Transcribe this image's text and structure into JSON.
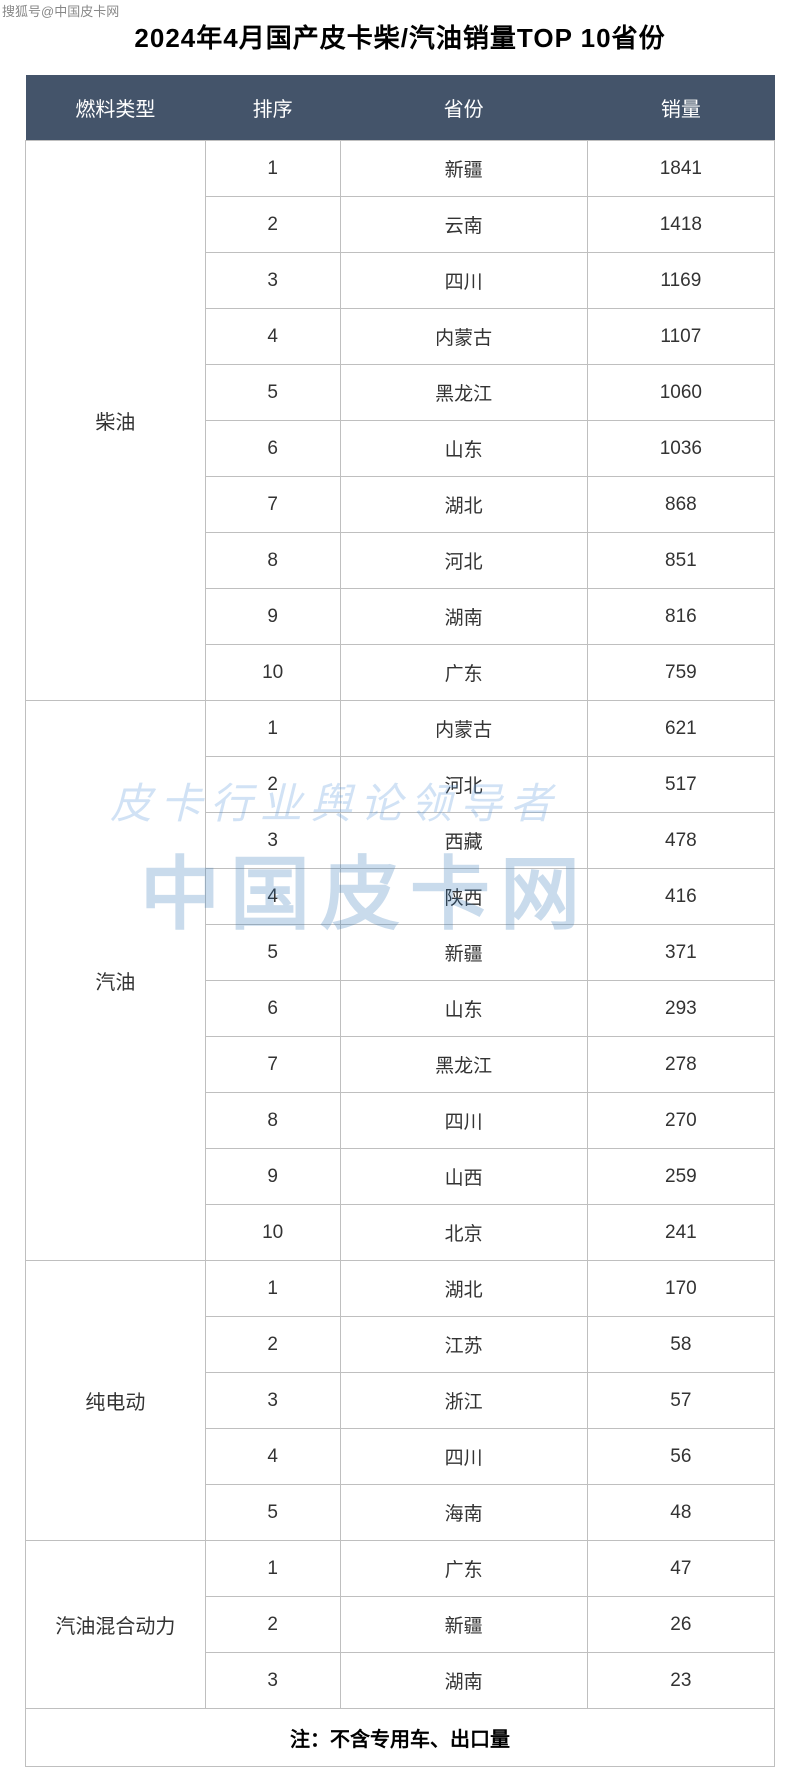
{
  "source_label": "搜狐号@中国皮卡网",
  "title": "2024年4月国产皮卡柴/汽油销量TOP 10省份",
  "watermark_line1": "皮卡行业舆论领导者",
  "watermark_line2": "中国皮卡网",
  "table": {
    "header_bg": "#44546a",
    "header_color": "#ffffff",
    "border_color": "#bfbfbf",
    "columns": [
      "燃料类型",
      "排序",
      "省份",
      "销量"
    ],
    "groups": [
      {
        "fuel_type": "柴油",
        "rows": [
          {
            "rank": "1",
            "province": "新疆",
            "sales": "1841"
          },
          {
            "rank": "2",
            "province": "云南",
            "sales": "1418"
          },
          {
            "rank": "3",
            "province": "四川",
            "sales": "1169"
          },
          {
            "rank": "4",
            "province": "内蒙古",
            "sales": "1107"
          },
          {
            "rank": "5",
            "province": "黑龙江",
            "sales": "1060"
          },
          {
            "rank": "6",
            "province": "山东",
            "sales": "1036"
          },
          {
            "rank": "7",
            "province": "湖北",
            "sales": "868"
          },
          {
            "rank": "8",
            "province": "河北",
            "sales": "851"
          },
          {
            "rank": "9",
            "province": "湖南",
            "sales": "816"
          },
          {
            "rank": "10",
            "province": "广东",
            "sales": "759"
          }
        ]
      },
      {
        "fuel_type": "汽油",
        "rows": [
          {
            "rank": "1",
            "province": "内蒙古",
            "sales": "621"
          },
          {
            "rank": "2",
            "province": "河北",
            "sales": "517"
          },
          {
            "rank": "3",
            "province": "西藏",
            "sales": "478"
          },
          {
            "rank": "4",
            "province": "陕西",
            "sales": "416"
          },
          {
            "rank": "5",
            "province": "新疆",
            "sales": "371"
          },
          {
            "rank": "6",
            "province": "山东",
            "sales": "293"
          },
          {
            "rank": "7",
            "province": "黑龙江",
            "sales": "278"
          },
          {
            "rank": "8",
            "province": "四川",
            "sales": "270"
          },
          {
            "rank": "9",
            "province": "山西",
            "sales": "259"
          },
          {
            "rank": "10",
            "province": "北京",
            "sales": "241"
          }
        ]
      },
      {
        "fuel_type": "纯电动",
        "rows": [
          {
            "rank": "1",
            "province": "湖北",
            "sales": "170"
          },
          {
            "rank": "2",
            "province": "江苏",
            "sales": "58"
          },
          {
            "rank": "3",
            "province": "浙江",
            "sales": "57"
          },
          {
            "rank": "4",
            "province": "四川",
            "sales": "56"
          },
          {
            "rank": "5",
            "province": "海南",
            "sales": "48"
          }
        ]
      },
      {
        "fuel_type": "汽油混合动力",
        "rows": [
          {
            "rank": "1",
            "province": "广东",
            "sales": "47"
          },
          {
            "rank": "2",
            "province": "新疆",
            "sales": "26"
          },
          {
            "rank": "3",
            "province": "湖南",
            "sales": "23"
          }
        ]
      }
    ],
    "footer_note": "注：不含专用车、出口量"
  }
}
